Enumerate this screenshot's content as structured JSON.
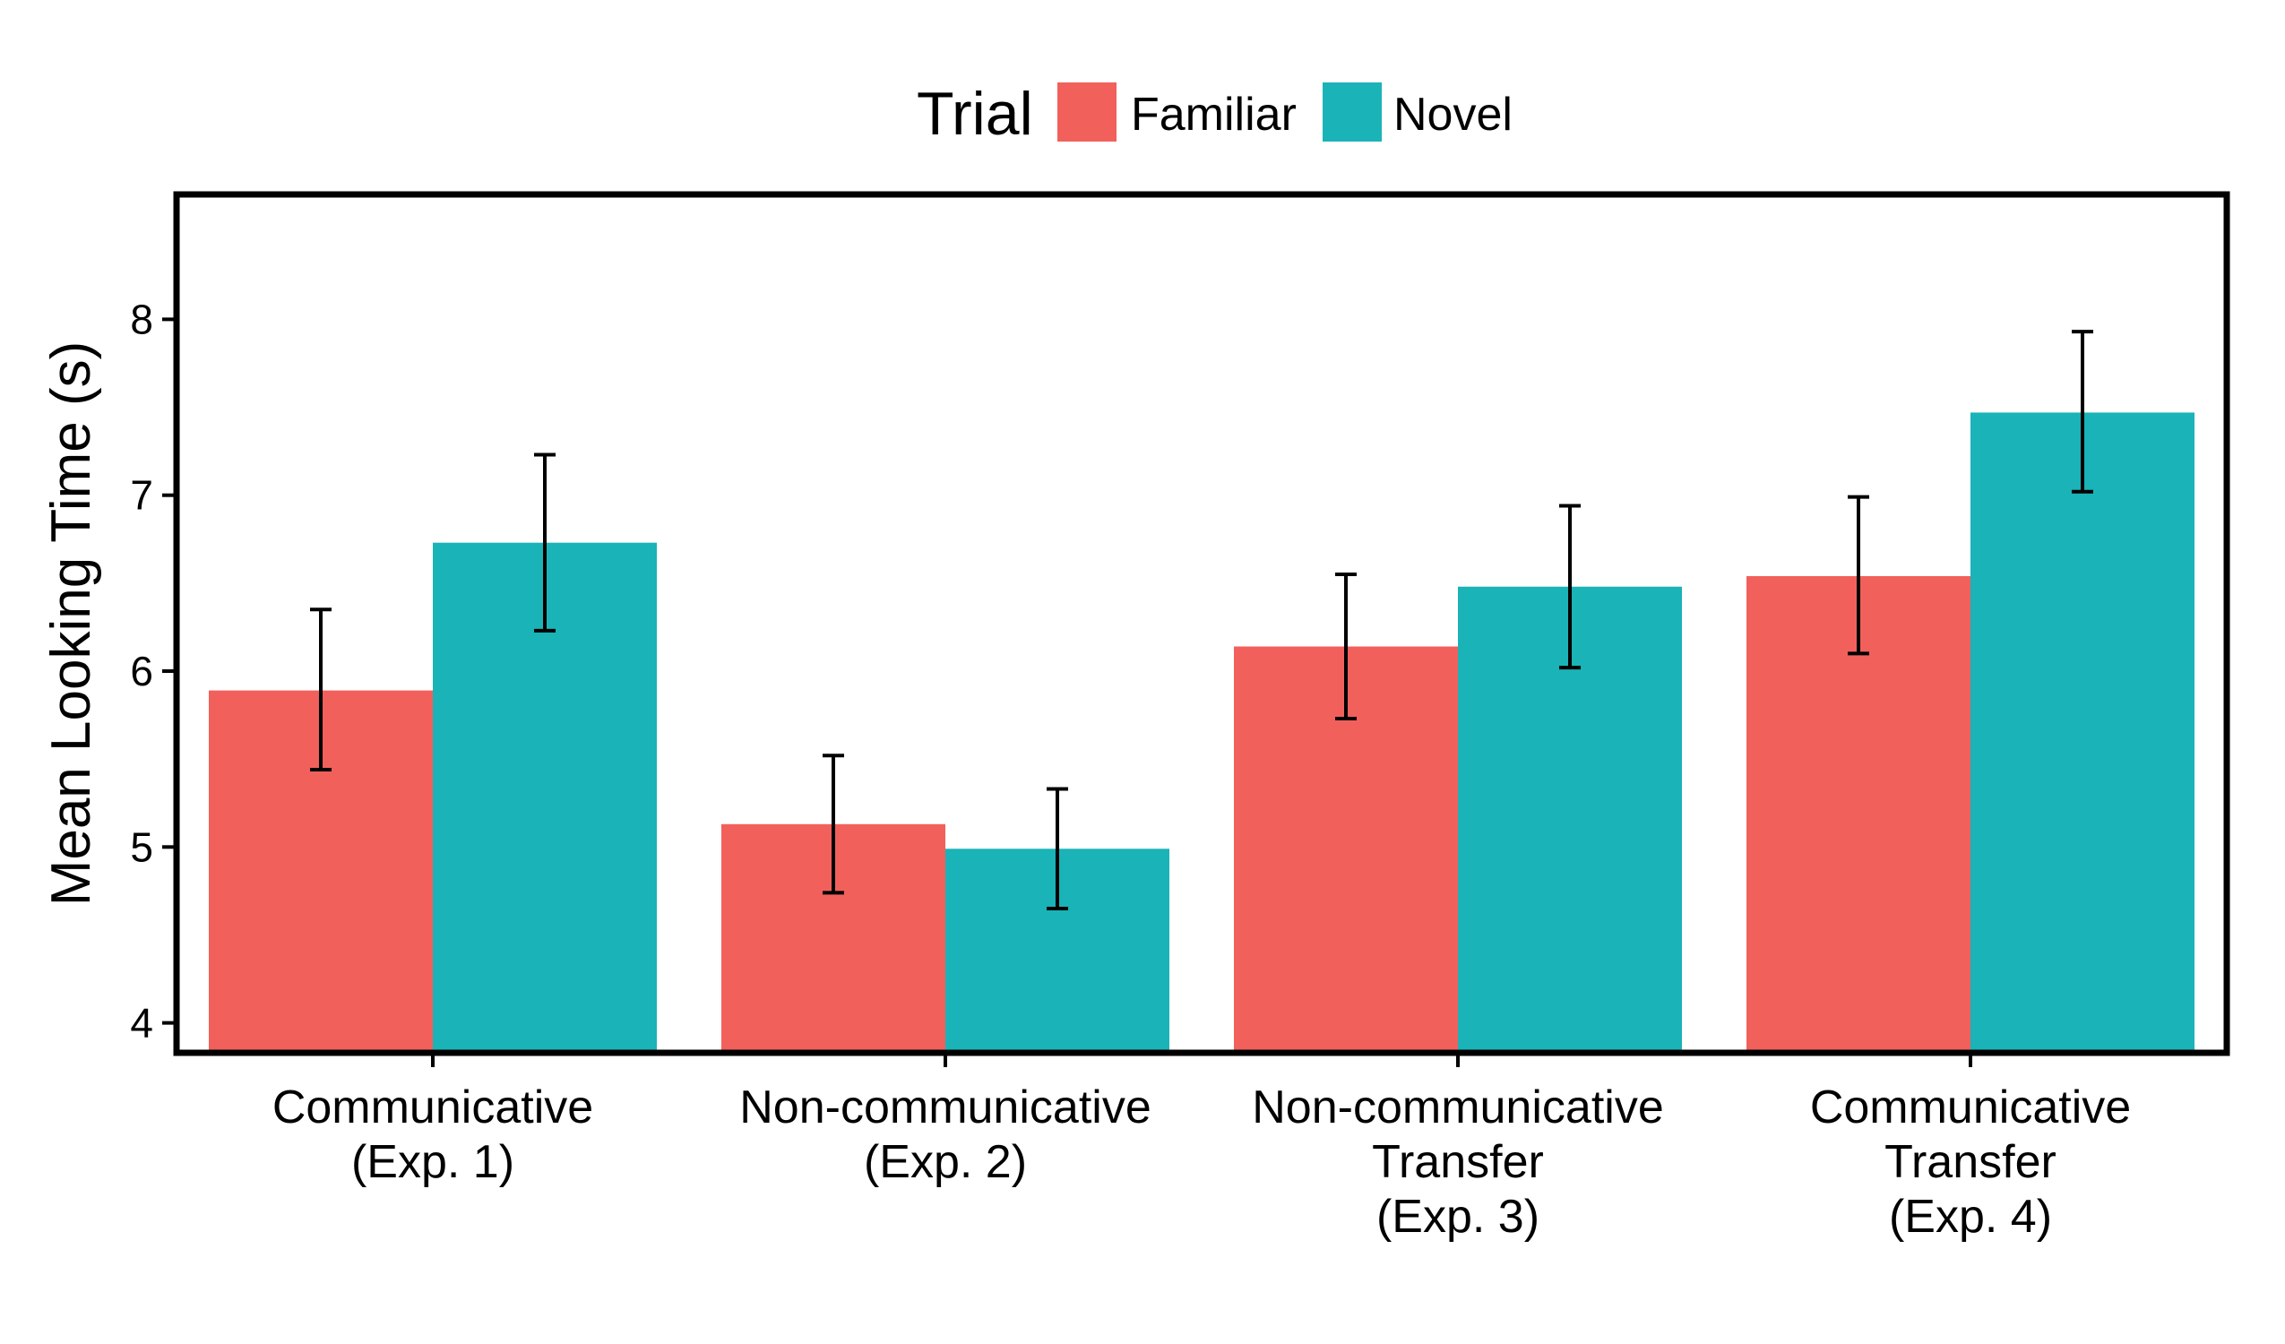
{
  "chart_data": {
    "type": "bar",
    "categories": [
      [
        "Communicative",
        "(Exp. 1)"
      ],
      [
        "Non-communicative",
        "(Exp. 2)"
      ],
      [
        "Non-communicative",
        "Transfer",
        "(Exp. 3)"
      ],
      [
        "Communicative",
        "Transfer",
        "(Exp. 4)"
      ]
    ],
    "series": [
      {
        "name": "Familiar",
        "color": "#F2605C",
        "values": [
          5.89,
          5.13,
          6.14,
          6.54
        ],
        "error_low": [
          5.44,
          4.74,
          5.73,
          6.1
        ],
        "error_high": [
          6.35,
          5.52,
          6.55,
          6.99
        ]
      },
      {
        "name": "Novel",
        "color": "#1AB3B7",
        "values": [
          6.73,
          4.99,
          6.48,
          7.47
        ],
        "error_low": [
          6.23,
          4.65,
          6.02,
          7.02
        ],
        "error_high": [
          7.23,
          5.33,
          6.94,
          7.93
        ]
      }
    ],
    "ylabel": "Mean Looking Time (s)",
    "xlabel": "",
    "ylim": [
      3.83,
      8.71
    ],
    "yticks": [
      4,
      5,
      6,
      7,
      8
    ],
    "legend": {
      "title": "Trial",
      "placement": "top-center"
    },
    "grid": false
  }
}
